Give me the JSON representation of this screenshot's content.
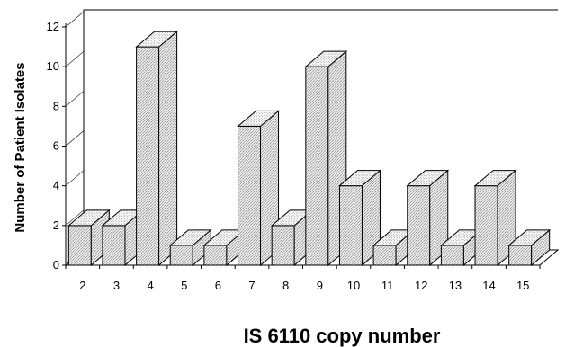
{
  "chart_data": {
    "type": "bar",
    "style": "3d",
    "title": "",
    "xlabel": "IS 6110  copy number",
    "ylabel": "Number of Patient Isolates",
    "categories": [
      "2",
      "3",
      "4",
      "5",
      "6",
      "7",
      "8",
      "9",
      "10",
      "11",
      "12",
      "13",
      "14",
      "15"
    ],
    "values": [
      2,
      2,
      11,
      1,
      1,
      7,
      2,
      10,
      4,
      1,
      4,
      1,
      4,
      1
    ],
    "ylim": [
      0,
      12
    ],
    "yticks": [
      "0",
      "2",
      "4",
      "6",
      "8",
      "10",
      "12"
    ],
    "grid": false,
    "legend": "none",
    "bar_fill": "#cfcfcf"
  }
}
